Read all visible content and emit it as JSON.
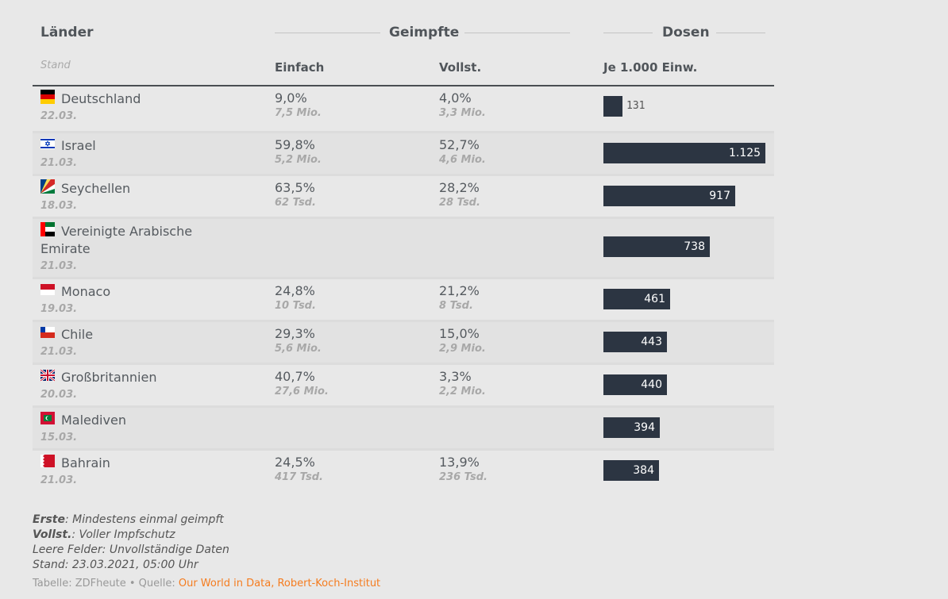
{
  "header": {
    "laender": "Länder",
    "geimpfte": "Geimpfte",
    "dosen": "Dosen",
    "stand": "Stand",
    "einfach": "Einfach",
    "vollst": "Vollst.",
    "je": "Je 1.000 Einw."
  },
  "bar_color": "#2c3542",
  "rows": [
    {
      "flag": "de",
      "name": "Deutschland",
      "date": "22.03.",
      "einfach": "9,0%",
      "einfach_abs": "7,5 Mio.",
      "vollst": "4,0%",
      "vollst_abs": "3,3 Mio.",
      "dosen": 131,
      "dosen_label": "131"
    },
    {
      "flag": "il",
      "name": "Israel",
      "date": "21.03.",
      "einfach": "59,8%",
      "einfach_abs": "5,2 Mio.",
      "vollst": "52,7%",
      "vollst_abs": "4,6 Mio.",
      "dosen": 1125,
      "dosen_label": "1.125"
    },
    {
      "flag": "sc",
      "name": "Seychellen",
      "date": "18.03.",
      "einfach": "63,5%",
      "einfach_abs": "62 Tsd.",
      "vollst": "28,2%",
      "vollst_abs": "28 Tsd.",
      "dosen": 917,
      "dosen_label": "917"
    },
    {
      "flag": "ae",
      "name": "Vereinigte Arabische Emirate",
      "date": "21.03.",
      "einfach": "",
      "einfach_abs": "",
      "vollst": "",
      "vollst_abs": "",
      "dosen": 738,
      "dosen_label": "738"
    },
    {
      "flag": "mc",
      "name": "Monaco",
      "date": "19.03.",
      "einfach": "24,8%",
      "einfach_abs": "10 Tsd.",
      "vollst": "21,2%",
      "vollst_abs": "8 Tsd.",
      "dosen": 461,
      "dosen_label": "461"
    },
    {
      "flag": "cl",
      "name": "Chile",
      "date": "21.03.",
      "einfach": "29,3%",
      "einfach_abs": "5,6 Mio.",
      "vollst": "15,0%",
      "vollst_abs": "2,9 Mio.",
      "dosen": 443,
      "dosen_label": "443"
    },
    {
      "flag": "gb",
      "name": "Großbritannien",
      "date": "20.03.",
      "einfach": "40,7%",
      "einfach_abs": "27,6 Mio.",
      "vollst": "3,3%",
      "vollst_abs": "2,2 Mio.",
      "dosen": 440,
      "dosen_label": "440"
    },
    {
      "flag": "mv",
      "name": "Malediven",
      "date": "15.03.",
      "einfach": "",
      "einfach_abs": "",
      "vollst": "",
      "vollst_abs": "",
      "dosen": 394,
      "dosen_label": "394"
    },
    {
      "flag": "bh",
      "name": "Bahrain",
      "date": "21.03.",
      "einfach": "24,5%",
      "einfach_abs": "417 Tsd.",
      "vollst": "13,9%",
      "vollst_abs": "236 Tsd.",
      "dosen": 384,
      "dosen_label": "384"
    }
  ],
  "notes": {
    "erste_b": "Erste",
    "erste": ": Mindestens einmal geimpft",
    "vollst_b": "Vollst.",
    "vollst": ": Voller Impfschutz",
    "leere": "Leere Felder: Unvollständige Daten",
    "stand": "Stand: 23.03.2021, 05:00 Uhr"
  },
  "source": {
    "prefix": "Tabelle: ZDFheute • Quelle: ",
    "link": "Our World in Data, Robert-Koch-Institut",
    "link_color": "#f57c1f"
  }
}
